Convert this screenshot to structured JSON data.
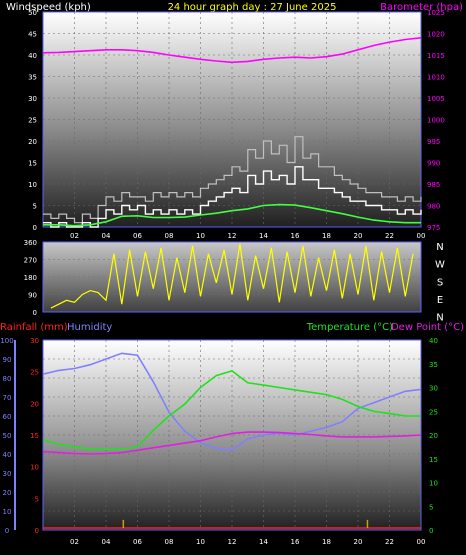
{
  "header": {
    "left_label": "Windspeed (kph)",
    "center_label": "24 hour graph day : 27 June 2025",
    "right_label": "Barometer (hpa)"
  },
  "bottom_header": {
    "rainfall_label": "Rainfall (mm)",
    "humidity_label": "Humidity",
    "temperature_label": "Temperature (°C)",
    "dewpoint_label": "Dew Point (°C)"
  },
  "colors": {
    "windspeed": "#ffffff",
    "gust": "#c0c0c0",
    "average": "#40ff40",
    "barometer": "#ff00ff",
    "direction": "#ffff00",
    "rainfall": "#ff2020",
    "humidity": "#8080ff",
    "temperature": "#20e020",
    "dewpoint": "#e020e0",
    "hour_label": "#ffffff"
  },
  "chart_data": [
    {
      "type": "line",
      "name": "wind-barometer",
      "x_ticks": [
        "02",
        "04",
        "06",
        "08",
        "10",
        "12",
        "14",
        "16",
        "18",
        "20",
        "22",
        "00"
      ],
      "xlim": [
        0,
        24
      ],
      "left_axis": {
        "ticks": [
          "0",
          "5",
          "10",
          "15",
          "20",
          "25",
          "30",
          "35",
          "40",
          "45",
          "50"
        ],
        "ylim": [
          0,
          50
        ]
      },
      "right_axis": {
        "ticks": [
          "975",
          "980",
          "985",
          "990",
          "995",
          "1000",
          "1005",
          "1010",
          "1015",
          "1020",
          "1025"
        ],
        "ylim": [
          975,
          1025
        ]
      },
      "series": [
        {
          "key": "gust",
          "x": [
            0,
            0.5,
            1,
            1.5,
            2,
            2.5,
            3,
            3.5,
            4,
            4.5,
            5,
            5.5,
            6,
            6.5,
            7,
            7.5,
            8,
            8.5,
            9,
            9.5,
            10,
            10.5,
            11,
            11.5,
            12,
            12.5,
            13,
            13.5,
            14,
            14.5,
            15,
            15.5,
            16,
            16.5,
            17,
            17.5,
            18,
            18.5,
            19,
            19.5,
            20,
            20.5,
            21,
            21.5,
            22,
            22.5,
            23,
            23.5,
            24
          ],
          "values": [
            3,
            2,
            3,
            2,
            1,
            3,
            2,
            5,
            7,
            6,
            8,
            7,
            7,
            6,
            8,
            7,
            8,
            7,
            8,
            7,
            9,
            10,
            11,
            12,
            14,
            13,
            18,
            16,
            20,
            17,
            19,
            15,
            21,
            16,
            17,
            14,
            14,
            12,
            11,
            10,
            9,
            8,
            8,
            7,
            7,
            6,
            7,
            6,
            7
          ]
        },
        {
          "key": "windspeed",
          "x": [
            0,
            0.5,
            1,
            1.5,
            2,
            2.5,
            3,
            3.5,
            4,
            4.5,
            5,
            5.5,
            6,
            6.5,
            7,
            7.5,
            8,
            8.5,
            9,
            9.5,
            10,
            10.5,
            11,
            11.5,
            12,
            12.5,
            13,
            13.5,
            14,
            14.5,
            15,
            15.5,
            16,
            16.5,
            17,
            17.5,
            18,
            18.5,
            19,
            19.5,
            20,
            20.5,
            21,
            21.5,
            22,
            22.5,
            23,
            23.5,
            24
          ],
          "values": [
            1,
            0,
            1,
            0,
            0,
            1,
            0,
            2,
            4,
            3,
            5,
            4,
            5,
            3,
            4,
            3,
            4,
            3,
            4,
            3,
            5,
            6,
            7,
            8,
            9,
            8,
            12,
            10,
            13,
            11,
            12,
            10,
            14,
            11,
            11,
            9,
            9,
            8,
            7,
            6,
            6,
            5,
            5,
            4,
            4,
            3,
            4,
            3,
            4
          ]
        },
        {
          "key": "average",
          "x": [
            0,
            1,
            2,
            3,
            4,
            5,
            6,
            7,
            8,
            9,
            10,
            11,
            12,
            13,
            14,
            15,
            16,
            17,
            18,
            19,
            20,
            21,
            22,
            23,
            24
          ],
          "values": [
            0.5,
            0.5,
            0.3,
            0.5,
            1.2,
            2.5,
            2.6,
            2.2,
            2.2,
            2.3,
            2.8,
            3.2,
            3.8,
            4.2,
            5,
            5.2,
            5.1,
            4.5,
            3.8,
            3.1,
            2.3,
            1.6,
            1.2,
            1,
            1
          ]
        },
        {
          "key": "barometer",
          "x": [
            0,
            1,
            2,
            3,
            4,
            5,
            6,
            7,
            8,
            9,
            10,
            11,
            12,
            13,
            14,
            15,
            16,
            17,
            18,
            19,
            20,
            21,
            22,
            23,
            24
          ],
          "values": [
            1015.5,
            1015.6,
            1015.8,
            1016,
            1016.2,
            1016.2,
            1016,
            1015.6,
            1015,
            1014.5,
            1014,
            1013.6,
            1013.3,
            1013.5,
            1014,
            1014.3,
            1014.5,
            1014.3,
            1014.6,
            1015.2,
            1016.2,
            1017.2,
            1018,
            1018.6,
            1019
          ]
        }
      ]
    },
    {
      "type": "line",
      "name": "wind-direction",
      "xlim": [
        0,
        24
      ],
      "left_axis": {
        "ticks": [
          "0",
          "90",
          "180",
          "270",
          "360"
        ],
        "ylim": [
          0,
          360
        ]
      },
      "right_labels": [
        "N",
        "W",
        "S",
        "E",
        "N"
      ],
      "series": [
        {
          "key": "direction",
          "x": [
            0.5,
            1,
            1.5,
            2,
            2.5,
            3,
            3.5,
            4,
            4.5,
            5,
            5.5,
            6,
            6.5,
            7,
            7.5,
            8,
            8.5,
            9,
            9.5,
            10,
            10.5,
            11,
            11.5,
            12,
            12.5,
            13,
            13.5,
            14,
            14.5,
            15,
            15.5,
            16,
            16.5,
            17,
            17.5,
            18,
            18.5,
            19,
            19.5,
            20,
            20.5,
            21,
            21.5,
            22,
            22.5,
            23,
            23.5
          ],
          "values": [
            20,
            40,
            60,
            50,
            90,
            110,
            100,
            60,
            300,
            40,
            320,
            80,
            310,
            120,
            330,
            60,
            280,
            100,
            340,
            80,
            300,
            150,
            320,
            90,
            350,
            60,
            290,
            120,
            330,
            50,
            310,
            100,
            340,
            80,
            280,
            110,
            320,
            70,
            300,
            90,
            340,
            60,
            310,
            100,
            330,
            80,
            300
          ]
        }
      ]
    },
    {
      "type": "line",
      "name": "rain-humidity-temperature",
      "x_ticks": [
        "02",
        "04",
        "06",
        "08",
        "10",
        "12",
        "14",
        "16",
        "18",
        "20",
        "22",
        "00"
      ],
      "xlim": [
        0,
        24
      ],
      "humidity_axis": {
        "ticks": [
          "0",
          "10",
          "20",
          "30",
          "40",
          "50",
          "60",
          "70",
          "80",
          "90",
          "100"
        ],
        "ylim": [
          0,
          100
        ]
      },
      "rainfall_axis": {
        "ticks": [
          "0",
          "5",
          "10",
          "15",
          "20",
          "25",
          "30"
        ],
        "ylim": [
          0,
          30
        ]
      },
      "temperature_axis": {
        "ticks": [
          "0",
          "5",
          "10",
          "15",
          "20",
          "25",
          "30",
          "35",
          "40"
        ],
        "ylim": [
          0,
          40
        ]
      },
      "series": [
        {
          "key": "humidity",
          "x": [
            0,
            1,
            2,
            3,
            4,
            5,
            6,
            7,
            8,
            9,
            10,
            11,
            12,
            13,
            14,
            15,
            16,
            17,
            18,
            19,
            20,
            21,
            22,
            23,
            24
          ],
          "values": [
            82,
            84,
            85,
            87,
            90,
            93,
            92,
            78,
            62,
            52,
            46,
            43,
            42,
            48,
            50,
            51,
            50,
            52,
            54,
            57,
            64,
            67,
            70,
            73,
            74
          ]
        },
        {
          "key": "temperature",
          "x": [
            0,
            1,
            2,
            3,
            4,
            5,
            6,
            7,
            8,
            9,
            10,
            11,
            12,
            13,
            14,
            15,
            16,
            17,
            18,
            19,
            20,
            21,
            22,
            23,
            24
          ],
          "values": [
            19,
            18,
            17.5,
            17,
            17,
            17,
            17.5,
            21,
            24,
            26.5,
            30,
            32.5,
            33.5,
            31,
            30.5,
            30,
            29.5,
            29,
            28.5,
            27.5,
            26,
            25,
            24.5,
            24,
            24
          ]
        },
        {
          "key": "dewpoint",
          "x": [
            0,
            1,
            2,
            3,
            4,
            5,
            6,
            7,
            8,
            9,
            10,
            11,
            12,
            13,
            14,
            15,
            16,
            17,
            18,
            19,
            20,
            21,
            22,
            23,
            24
          ],
          "values": [
            16.5,
            16.3,
            16.1,
            16,
            16.1,
            16.3,
            16.8,
            17.3,
            17.8,
            18.3,
            18.8,
            19.6,
            20.3,
            20.6,
            20.6,
            20.5,
            20.3,
            20.1,
            19.8,
            19.6,
            19.6,
            19.6,
            19.7,
            19.8,
            20
          ]
        },
        {
          "key": "rainfall",
          "x": [
            0,
            5.1,
            20.6
          ],
          "values": [
            0,
            0,
            0
          ],
          "bars": [
            {
              "x": 5.1,
              "value": 1.6
            },
            {
              "x": 20.6,
              "value": 1.6
            }
          ]
        }
      ]
    }
  ]
}
